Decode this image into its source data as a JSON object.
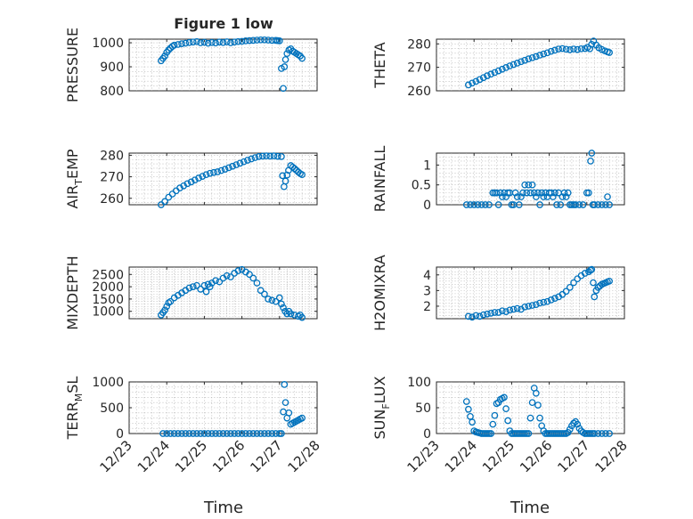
{
  "figure": {
    "title": "Figure 1 low"
  },
  "chart_data": [
    {
      "type": "scatter",
      "ylabel": "PRESSURE",
      "ylim": [
        800,
        1015
      ],
      "yticks": [
        800,
        900,
        1000
      ],
      "xlim": [
        0,
        5
      ],
      "xticks": [
        0,
        1,
        2,
        3,
        4,
        5
      ],
      "grid": true,
      "x": [
        0.85,
        0.9,
        0.95,
        1.0,
        1.05,
        1.1,
        1.15,
        1.2,
        1.3,
        1.4,
        1.5,
        1.6,
        1.7,
        1.8,
        1.9,
        2.0,
        2.1,
        2.2,
        2.3,
        2.4,
        2.5,
        2.6,
        2.7,
        2.8,
        2.9,
        3.0,
        3.1,
        3.2,
        3.3,
        3.4,
        3.5,
        3.6,
        3.7,
        3.8,
        3.9,
        3.95,
        4.0,
        4.05,
        4.1,
        4.13,
        4.16,
        4.2,
        4.25,
        4.3,
        4.35,
        4.4,
        4.45,
        4.5,
        4.55,
        4.6
      ],
      "y": [
        925,
        935,
        945,
        960,
        970,
        978,
        985,
        990,
        993,
        996,
        998,
        1001,
        1003,
        1005,
        1000,
        1002,
        998,
        1001,
        999,
        1003,
        1001,
        1004,
        1000,
        1003,
        1005,
        1006,
        1008,
        1009,
        1010,
        1011,
        1012,
        1012,
        1011,
        1010,
        1010,
        1009,
        1008,
        893,
        810,
        900,
        930,
        955,
        970,
        975,
        965,
        960,
        955,
        950,
        945,
        935
      ]
    },
    {
      "type": "scatter",
      "ylabel": "THETA",
      "ylim": [
        260,
        282
      ],
      "yticks": [
        260,
        270,
        280
      ],
      "xlim": [
        0,
        5
      ],
      "xticks": [
        0,
        1,
        2,
        3,
        4,
        5
      ],
      "grid": true,
      "x": [
        0.85,
        0.95,
        1.05,
        1.15,
        1.25,
        1.35,
        1.45,
        1.55,
        1.65,
        1.75,
        1.85,
        1.95,
        2.05,
        2.15,
        2.25,
        2.35,
        2.45,
        2.55,
        2.65,
        2.75,
        2.85,
        2.95,
        3.05,
        3.15,
        3.25,
        3.35,
        3.45,
        3.55,
        3.65,
        3.75,
        3.85,
        3.95,
        4.02,
        4.08,
        4.13,
        4.18,
        4.25,
        4.32,
        4.4,
        4.48,
        4.55,
        4.6
      ],
      "y": [
        262.5,
        263.3,
        264.0,
        264.8,
        265.6,
        266.4,
        267.1,
        267.8,
        268.5,
        269.2,
        269.9,
        270.6,
        271.2,
        271.8,
        272.4,
        273.0,
        273.6,
        274.1,
        274.6,
        275.2,
        275.7,
        276.2,
        276.8,
        277.3,
        277.8,
        278.0,
        277.7,
        277.5,
        277.8,
        277.6,
        277.9,
        278.0,
        278.5,
        277.9,
        279.8,
        281.2,
        279.5,
        278.3,
        277.6,
        277.0,
        276.6,
        276.3
      ]
    },
    {
      "type": "scatter",
      "ylabel": "AIR_TEMP",
      "ylim": [
        257,
        281
      ],
      "yticks": [
        260,
        270,
        280
      ],
      "xlim": [
        0,
        5
      ],
      "xticks": [
        0,
        1,
        2,
        3,
        4,
        5
      ],
      "grid": true,
      "x": [
        0.85,
        0.95,
        1.05,
        1.15,
        1.25,
        1.35,
        1.45,
        1.55,
        1.65,
        1.75,
        1.85,
        1.95,
        2.05,
        2.15,
        2.25,
        2.35,
        2.45,
        2.55,
        2.65,
        2.75,
        2.85,
        2.95,
        3.05,
        3.15,
        3.25,
        3.35,
        3.45,
        3.55,
        3.65,
        3.75,
        3.85,
        3.95,
        4.05,
        4.08,
        4.12,
        4.16,
        4.2,
        4.24,
        4.3,
        4.35,
        4.4,
        4.45,
        4.5,
        4.55,
        4.6
      ],
      "y": [
        257.0,
        258.5,
        260.5,
        262.0,
        263.5,
        264.8,
        265.8,
        266.8,
        267.6,
        268.5,
        269.4,
        270.2,
        271.0,
        271.6,
        272.0,
        272.3,
        272.9,
        273.5,
        274.2,
        274.9,
        275.6,
        276.3,
        277.0,
        277.7,
        278.3,
        278.9,
        279.4,
        279.6,
        279.7,
        279.6,
        279.7,
        279.5,
        279.4,
        270.5,
        265.4,
        268.0,
        270.8,
        273.0,
        275.2,
        274.5,
        273.8,
        273.0,
        272.2,
        271.5,
        271.0
      ]
    },
    {
      "type": "scatter",
      "ylabel": "RAINFALL",
      "ylim": [
        0,
        1.3
      ],
      "yticks": [
        0,
        0.5,
        1
      ],
      "xlim": [
        0,
        5
      ],
      "xticks": [
        0,
        1,
        2,
        3,
        4,
        5
      ],
      "grid": true,
      "x": [
        0.8,
        0.9,
        1.0,
        1.1,
        1.2,
        1.3,
        1.4,
        1.5,
        1.55,
        1.6,
        1.65,
        1.7,
        1.75,
        1.8,
        1.85,
        1.9,
        1.95,
        2.0,
        2.05,
        2.1,
        2.15,
        2.2,
        2.25,
        2.3,
        2.35,
        2.4,
        2.45,
        2.5,
        2.55,
        2.6,
        2.65,
        2.7,
        2.75,
        2.8,
        2.85,
        2.9,
        2.95,
        3.0,
        3.05,
        3.1,
        3.15,
        3.2,
        3.25,
        3.3,
        3.35,
        3.4,
        3.45,
        3.5,
        3.55,
        3.6,
        3.65,
        3.7,
        3.8,
        3.9,
        4.0,
        4.05,
        4.1,
        4.13,
        4.16,
        4.2,
        4.3,
        4.4,
        4.5,
        4.55,
        4.6
      ],
      "y": [
        0,
        0,
        0,
        0,
        0,
        0,
        0,
        0.3,
        0.3,
        0.3,
        0,
        0.3,
        0.2,
        0.3,
        0.2,
        0.3,
        0.3,
        0,
        0,
        0.3,
        0.2,
        0,
        0.2,
        0.3,
        0.5,
        0.3,
        0.5,
        0.3,
        0.5,
        0.3,
        0.2,
        0.3,
        0,
        0.3,
        0.2,
        0.3,
        0.2,
        0.3,
        0.3,
        0.2,
        0.3,
        0,
        0.3,
        0,
        0.2,
        0.3,
        0.2,
        0.3,
        0,
        0,
        0,
        0,
        0,
        0,
        0.3,
        0.3,
        1.1,
        1.3,
        0,
        0,
        0,
        0,
        0,
        0.2,
        0
      ]
    },
    {
      "type": "scatter",
      "ylabel": "MIXDEPTH",
      "ylim": [
        700,
        2800
      ],
      "yticks": [
        1000,
        1500,
        2000,
        2500
      ],
      "xlim": [
        0,
        5
      ],
      "xticks": [
        0,
        1,
        2,
        3,
        4,
        5
      ],
      "grid": true,
      "x": [
        0.85,
        0.9,
        0.95,
        1.0,
        1.05,
        1.1,
        1.2,
        1.3,
        1.4,
        1.5,
        1.6,
        1.7,
        1.8,
        1.9,
        2.0,
        2.05,
        2.1,
        2.15,
        2.2,
        2.3,
        2.4,
        2.5,
        2.6,
        2.7,
        2.8,
        2.9,
        3.0,
        3.1,
        3.2,
        3.3,
        3.4,
        3.5,
        3.6,
        3.7,
        3.8,
        3.9,
        4.0,
        4.05,
        4.1,
        4.15,
        4.2,
        4.25,
        4.3,
        4.4,
        4.5,
        4.55,
        4.6
      ],
      "y": [
        850,
        950,
        1050,
        1200,
        1350,
        1400,
        1550,
        1650,
        1750,
        1850,
        1950,
        2000,
        2050,
        1900,
        2050,
        1800,
        2100,
        2000,
        2150,
        2250,
        2200,
        2350,
        2450,
        2400,
        2550,
        2650,
        2700,
        2600,
        2500,
        2350,
        2150,
        1850,
        1700,
        1500,
        1450,
        1400,
        1550,
        1300,
        1150,
        1000,
        900,
        1000,
        900,
        850,
        800,
        850,
        750
      ]
    },
    {
      "type": "scatter",
      "ylabel": "H2OMIXRA",
      "ylim": [
        1.2,
        4.5
      ],
      "yticks": [
        2,
        3,
        4
      ],
      "xlim": [
        0,
        5
      ],
      "xticks": [
        0,
        1,
        2,
        3,
        4,
        5
      ],
      "grid": true,
      "x": [
        0.85,
        0.95,
        1.05,
        1.15,
        1.25,
        1.35,
        1.45,
        1.55,
        1.65,
        1.75,
        1.85,
        1.95,
        2.05,
        2.15,
        2.25,
        2.35,
        2.45,
        2.55,
        2.65,
        2.75,
        2.85,
        2.95,
        3.05,
        3.15,
        3.25,
        3.35,
        3.45,
        3.55,
        3.65,
        3.75,
        3.85,
        3.95,
        4.05,
        4.1,
        4.13,
        4.17,
        4.2,
        4.25,
        4.3,
        4.35,
        4.4,
        4.45,
        4.5,
        4.55,
        4.6
      ],
      "y": [
        1.35,
        1.3,
        1.4,
        1.35,
        1.45,
        1.5,
        1.55,
        1.6,
        1.6,
        1.7,
        1.65,
        1.75,
        1.8,
        1.85,
        1.8,
        1.95,
        2.0,
        2.05,
        2.1,
        2.2,
        2.25,
        2.3,
        2.4,
        2.5,
        2.6,
        2.75,
        2.95,
        3.2,
        3.5,
        3.75,
        3.95,
        4.1,
        4.2,
        4.3,
        4.35,
        3.5,
        2.6,
        3.0,
        3.2,
        3.3,
        3.4,
        3.45,
        3.5,
        3.55,
        3.6
      ]
    },
    {
      "type": "scatter",
      "ylabel": "TERR_MSL",
      "ylim": [
        0,
        1000
      ],
      "yticks": [
        0,
        500,
        1000
      ],
      "xlim": [
        0,
        5
      ],
      "xticks": [
        0,
        1,
        2,
        3,
        4,
        5
      ],
      "grid": true,
      "x": [
        0.9,
        1.0,
        1.1,
        1.2,
        1.3,
        1.4,
        1.5,
        1.6,
        1.7,
        1.8,
        1.9,
        2.0,
        2.1,
        2.2,
        2.3,
        2.4,
        2.5,
        2.6,
        2.7,
        2.8,
        2.9,
        3.0,
        3.1,
        3.2,
        3.3,
        3.4,
        3.5,
        3.6,
        3.7,
        3.8,
        3.9,
        4.0,
        4.05,
        4.1,
        4.13,
        4.16,
        4.2,
        4.25,
        4.3,
        4.35,
        4.4,
        4.45,
        4.5,
        4.55,
        4.6
      ],
      "y": [
        0,
        0,
        0,
        0,
        0,
        0,
        0,
        0,
        0,
        0,
        0,
        0,
        0,
        0,
        0,
        0,
        0,
        0,
        0,
        0,
        0,
        0,
        0,
        0,
        0,
        0,
        0,
        0,
        0,
        0,
        0,
        0,
        0,
        420,
        950,
        600,
        300,
        400,
        180,
        200,
        220,
        240,
        260,
        280,
        300
      ]
    },
    {
      "type": "scatter",
      "ylabel": "SUN_FLUX",
      "ylim": [
        0,
        100
      ],
      "yticks": [
        0,
        50,
        100
      ],
      "xlim": [
        0,
        5
      ],
      "xticks": [
        0,
        1,
        2,
        3,
        4,
        5
      ],
      "grid": true,
      "x": [
        0.8,
        0.85,
        0.9,
        0.95,
        1.0,
        1.05,
        1.1,
        1.15,
        1.2,
        1.25,
        1.3,
        1.35,
        1.4,
        1.45,
        1.5,
        1.55,
        1.6,
        1.65,
        1.7,
        1.75,
        1.8,
        1.85,
        1.9,
        1.95,
        2.0,
        2.05,
        2.1,
        2.15,
        2.2,
        2.25,
        2.3,
        2.35,
        2.4,
        2.45,
        2.5,
        2.55,
        2.6,
        2.65,
        2.7,
        2.75,
        2.8,
        2.85,
        2.9,
        2.95,
        3.0,
        3.05,
        3.1,
        3.15,
        3.2,
        3.25,
        3.3,
        3.35,
        3.4,
        3.45,
        3.5,
        3.55,
        3.6,
        3.65,
        3.7,
        3.75,
        3.8,
        3.85,
        3.9,
        3.95,
        4.0,
        4.05,
        4.1,
        4.15,
        4.2,
        4.3,
        4.4,
        4.5,
        4.6
      ],
      "y": [
        62,
        47,
        33,
        22,
        5,
        3,
        2,
        1,
        0,
        0,
        0,
        0,
        0,
        0,
        18,
        35,
        58,
        60,
        66,
        68,
        70,
        48,
        25,
        5,
        0,
        0,
        0,
        0,
        0,
        0,
        0,
        0,
        0,
        0,
        30,
        60,
        88,
        78,
        55,
        30,
        15,
        5,
        0,
        0,
        0,
        0,
        0,
        0,
        0,
        0,
        0,
        0,
        0,
        0,
        2,
        8,
        15,
        20,
        23,
        18,
        10,
        5,
        2,
        0,
        0,
        0,
        0,
        0,
        0,
        0,
        0,
        0,
        0
      ]
    }
  ],
  "xaxis": {
    "ticklabels": [
      "12/23",
      "12/24",
      "12/25",
      "12/26",
      "12/27",
      "12/28"
    ],
    "label": "Time"
  }
}
